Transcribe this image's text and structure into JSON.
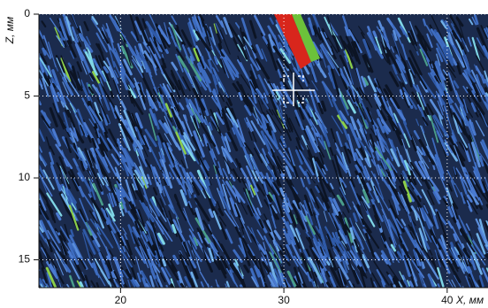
{
  "chart_data": {
    "type": "heatmap",
    "ylabel": "Z, мм",
    "xlabel": "X, мм",
    "xlim": [
      15,
      42.5
    ],
    "xticks": [
      20,
      30,
      40
    ],
    "ylim": [
      0,
      16.7
    ],
    "yticks": [
      0,
      5,
      10,
      15
    ],
    "grid": true
  }
}
